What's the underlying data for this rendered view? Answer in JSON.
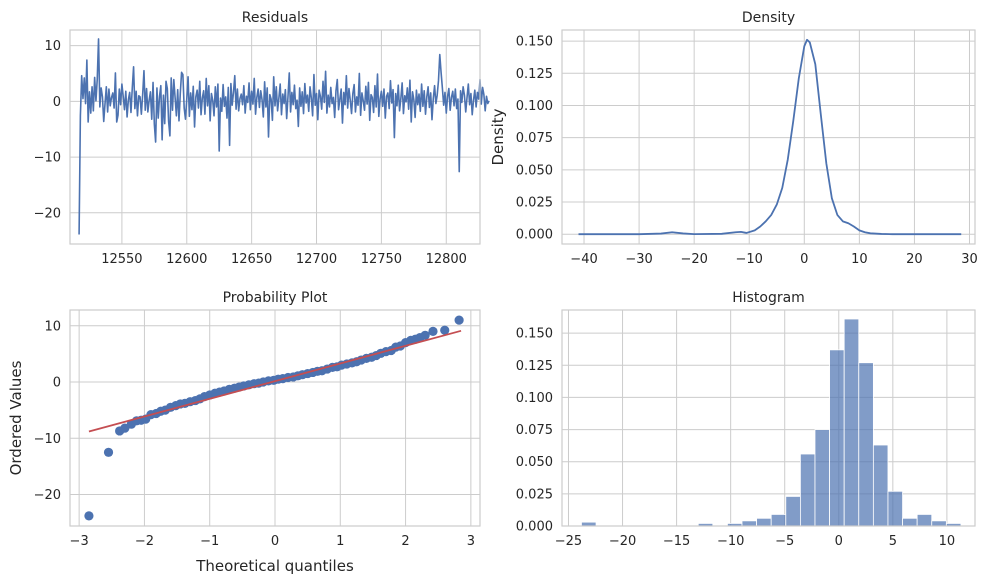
{
  "chart_data": [
    {
      "id": "residuals",
      "type": "line",
      "title": "Residuals",
      "xlabel": "",
      "ylabel": "",
      "xlim": [
        12510,
        12826
      ],
      "ylim": [
        -25.6,
        12.8
      ],
      "xticks": [
        12550,
        12600,
        12650,
        12700,
        12750,
        12800
      ],
      "yticks": [
        10,
        0,
        -10,
        -20
      ],
      "grid": true,
      "line_color": "#4c72b0",
      "x_start": 12517,
      "x_step": 1,
      "y": [
        -23.9,
        -2.6,
        4.6,
        0.5,
        4.2,
        -0.4,
        7.4,
        -3.7,
        1.7,
        -2.1,
        2.6,
        -1.7,
        4.3,
        0.1,
        4.0,
        11.2,
        -1.0,
        2.4,
        0.8,
        -3.6,
        -0.4,
        2.6,
        -1.9,
        2.2,
        -0.8,
        0.7,
        1.5,
        -1.2,
        5.1,
        -3.7,
        -2.5,
        2.2,
        -0.6,
        3.1,
        0.9,
        -1.5,
        1.8,
        -2.8,
        0.3,
        1.6,
        -2.0,
        2.4,
        6.2,
        -1.3,
        1.8,
        -2.6,
        1.0,
        0.8,
        -2.3,
        1.2,
        5.5,
        -1.6,
        2.3,
        -1.9,
        0.2,
        1.7,
        -3.2,
        3.4,
        -4.1,
        -7.3,
        2.4,
        -3.0,
        0.9,
        2.8,
        -6.9,
        1.1,
        -4.0,
        3.6,
        2.3,
        -3.6,
        -6.2,
        4.2,
        -1.6,
        3.9,
        0.7,
        -2.6,
        2.1,
        -3.5,
        1.4,
        5.2,
        4.8,
        -1.2,
        -3.2,
        0.4,
        4.4,
        -2.7,
        1.5,
        -1.5,
        2.7,
        -4.6,
        0.8,
        2.0,
        -1.2,
        3.6,
        -2.4,
        0.6,
        1.9,
        -2.3,
        4.1,
        -0.8,
        2.8,
        -3.5,
        1.4,
        0.2,
        -2.6,
        2.6,
        -1.0,
        3.1,
        -8.9,
        0.6,
        -1.8,
        3.0,
        -0.9,
        0.8,
        -3.0,
        2.5,
        -7.9,
        3.2,
        -0.7,
        1.6,
        4.6,
        -1.4,
        2.2,
        -1.7,
        0.5,
        1.3,
        -0.6,
        2.8,
        -2.1,
        0.9,
        -0.2,
        3.3,
        -1.5,
        1.8,
        -0.5,
        4.1,
        -2.3,
        0.7,
        2.2,
        -1.1,
        1.9,
        0.3,
        -2.8,
        3.5,
        -1.0,
        2.4,
        -6.4,
        1.2,
        0.4,
        -3.4,
        4.4,
        -0.8,
        2.6,
        -1.7,
        0.6,
        3.1,
        -2.4,
        1.3,
        -0.4,
        2.1,
        -3.1,
        0.8,
        5.1,
        -1.9,
        1.6,
        -0.6,
        2.9,
        -1.3,
        0.2,
        -4.5,
        2.4,
        -0.9,
        1.7,
        -2.2,
        3.2,
        -0.3,
        1.1,
        -1.8,
        2.6,
        0.6,
        -2.6,
        4.8,
        -0.7,
        1.4,
        -3.3,
        2.0,
        0.9,
        -1.4,
        3.6,
        -0.2,
        5.4,
        -2.1,
        1.1,
        -1.0,
        2.5,
        -0.4,
        0.7,
        -2.9,
        1.9,
        3.9,
        -1.5,
        0.4,
        2.2,
        -3.9,
        1.6,
        -0.6,
        4.6,
        -1.2,
        2.3,
        0.2,
        -2.2,
        1.4,
        3.0,
        -1.9,
        0.8,
        -0.7,
        5.0,
        -2.5,
        1.5,
        0.1,
        -1.6,
        2.7,
        -0.5,
        3.4,
        -3.4,
        1.2,
        0.7,
        -2.0,
        2.8,
        -1.0,
        4.9,
        -2.7,
        0.4,
        1.8,
        -0.9,
        2.2,
        -3.0,
        0.9,
        1.5,
        -1.3,
        3.7,
        -0.3,
        2.1,
        -6.5,
        1.4,
        -0.8,
        2.9,
        -1.7,
        0.5,
        3.3,
        -2.2,
        1.0,
        -0.1,
        2.4,
        -1.4,
        3.8,
        -3.7,
        1.7,
        0.3,
        -2.9,
        2.0,
        -0.6,
        1.3,
        -1.8,
        3.1,
        -0.9,
        1.9,
        -2.3,
        0.8,
        2.6,
        -1.1,
        1.5,
        -3.3,
        0.5,
        2.8,
        -0.4,
        1.1,
        3.7,
        8.4,
        5.2,
        2.4,
        -0.7,
        1.6,
        -2.1,
        0.9,
        2.3,
        -1.6,
        0.7,
        1.8,
        -0.8,
        2.2,
        -1.3,
        0.4,
        -12.6,
        1.9,
        -0.2,
        2.6,
        1.1,
        -1.9,
        0.7,
        3.1,
        -0.6,
        1.4,
        -2.4,
        0.2,
        2.0,
        -1.0,
        1.6,
        0.4,
        3.9,
        -0.5,
        2.5,
        1.2,
        -1.7,
        0.9,
        -0.4,
        0.1
      ]
    },
    {
      "id": "density",
      "type": "line",
      "title": "Density",
      "xlabel": "",
      "ylabel": "Density",
      "xlim": [
        -44,
        31
      ],
      "ylim": [
        -0.0076,
        0.1586
      ],
      "xticks": [
        -40,
        -30,
        -20,
        -10,
        0,
        10,
        20,
        30
      ],
      "yticks": [
        0.15,
        0.125,
        0.1,
        0.075,
        0.05,
        0.025,
        0.0
      ],
      "ytick_labels": [
        "0.150",
        "0.125",
        "0.100",
        "0.075",
        "0.050",
        "0.025",
        "0.000"
      ],
      "grid": true,
      "line_color": "#4c72b0",
      "x": [
        -41,
        -30,
        -26,
        -24,
        -22,
        -20,
        -15,
        -12.5,
        -11.5,
        -10.5,
        -9,
        -8,
        -7,
        -6,
        -5,
        -4,
        -3,
        -2,
        -1,
        0,
        0.5,
        1,
        2,
        3,
        4,
        5,
        6,
        7,
        8,
        9,
        10,
        11,
        12,
        14,
        16,
        20,
        28.5
      ],
      "y": [
        0.0,
        0.0,
        0.0005,
        0.0015,
        0.0006,
        0.0001,
        0.0003,
        0.0015,
        0.0018,
        0.001,
        0.003,
        0.006,
        0.01,
        0.015,
        0.023,
        0.036,
        0.058,
        0.088,
        0.121,
        0.146,
        0.151,
        0.149,
        0.132,
        0.093,
        0.055,
        0.028,
        0.015,
        0.01,
        0.0085,
        0.006,
        0.003,
        0.0015,
        0.0007,
        0.0002,
        0.0,
        0.0,
        0.0
      ]
    },
    {
      "id": "probability-plot",
      "type": "scatter",
      "title": "Probability Plot",
      "xlabel": "Theoretical quantiles",
      "ylabel": "Ordered Values",
      "xlim": [
        -3.14,
        3.14
      ],
      "ylim": [
        -25.6,
        12.8
      ],
      "xticks": [
        -3,
        -2,
        -1,
        0,
        1,
        2,
        3
      ],
      "yticks": [
        10,
        0,
        -10,
        -20
      ],
      "grid": true,
      "point_color": "#4c72b0",
      "line_color": "#c44e52",
      "fit_line": {
        "x": [
          -2.85,
          2.85
        ],
        "y": [
          -8.8,
          9.1
        ]
      },
      "x": [
        -2.85,
        -2.55,
        -2.38,
        -2.3,
        -2.2,
        -2.12,
        -2.05,
        -1.98,
        -1.9,
        -1.82,
        -1.75,
        -1.68,
        -1.6,
        -1.52,
        -1.45,
        -1.38,
        -1.3,
        -1.22,
        -1.15,
        -1.08,
        -1.0,
        -0.92,
        -0.85,
        -0.78,
        -0.7,
        -0.62,
        -0.55,
        -0.48,
        -0.4,
        -0.32,
        -0.25,
        -0.18,
        -0.1,
        -0.02,
        0.05,
        0.12,
        0.2,
        0.28,
        0.35,
        0.42,
        0.5,
        0.58,
        0.65,
        0.72,
        0.8,
        0.88,
        0.95,
        1.02,
        1.1,
        1.18,
        1.25,
        1.32,
        1.4,
        1.48,
        1.55,
        1.62,
        1.7,
        1.78,
        1.85,
        1.92,
        2.0,
        2.08,
        2.15,
        2.22,
        2.3,
        2.42,
        2.6,
        2.82
      ],
      "y": [
        -23.8,
        -12.5,
        -8.7,
        -8.2,
        -7.5,
        -6.9,
        -6.8,
        -6.6,
        -5.8,
        -5.6,
        -5.2,
        -5.0,
        -4.5,
        -4.2,
        -3.9,
        -3.8,
        -3.5,
        -3.3,
        -3.0,
        -2.6,
        -2.3,
        -2.0,
        -1.8,
        -1.6,
        -1.3,
        -1.1,
        -0.9,
        -0.7,
        -0.5,
        -0.3,
        -0.2,
        0.0,
        0.2,
        0.3,
        0.5,
        0.6,
        0.8,
        0.9,
        1.1,
        1.3,
        1.5,
        1.7,
        1.9,
        2.0,
        2.3,
        2.6,
        2.7,
        3.0,
        3.2,
        3.4,
        3.6,
        3.9,
        4.2,
        4.4,
        4.7,
        5.1,
        5.4,
        5.6,
        6.2,
        6.4,
        7.0,
        7.4,
        7.6,
        7.9,
        8.3,
        9.0,
        9.2,
        11.0
      ]
    },
    {
      "id": "histogram",
      "type": "bar",
      "title": "Histogram",
      "xlabel": "",
      "ylabel": "",
      "xlim": [
        -25.6,
        12.6
      ],
      "ylim": [
        0,
        0.168
      ],
      "xticks": [
        -25,
        -20,
        -15,
        -10,
        -5,
        0,
        5,
        10
      ],
      "yticks": [
        0.15,
        0.125,
        0.1,
        0.075,
        0.05,
        0.025,
        0.0
      ],
      "ytick_labels": [
        "0.150",
        "0.125",
        "0.100",
        "0.075",
        "0.050",
        "0.025",
        "0.000"
      ],
      "grid": true,
      "bar_color": "#4c72b0",
      "bin_edges": [
        -23.8,
        -22.45,
        -21.1,
        -19.75,
        -18.4,
        -17.05,
        -15.7,
        -14.35,
        -13.0,
        -11.65,
        -10.3,
        -8.95,
        -7.6,
        -6.25,
        -4.9,
        -3.55,
        -2.2,
        -0.85,
        0.5,
        1.85,
        3.2,
        4.55,
        5.9,
        7.25,
        8.6,
        9.95,
        11.3
      ],
      "values": [
        0.003,
        0.0,
        0.0,
        0.0,
        0.0,
        0.0,
        0.0,
        0.0,
        0.002,
        0.0,
        0.002,
        0.004,
        0.006,
        0.009,
        0.023,
        0.056,
        0.075,
        0.137,
        0.161,
        0.127,
        0.063,
        0.027,
        0.006,
        0.009,
        0.004,
        0.002
      ]
    }
  ]
}
